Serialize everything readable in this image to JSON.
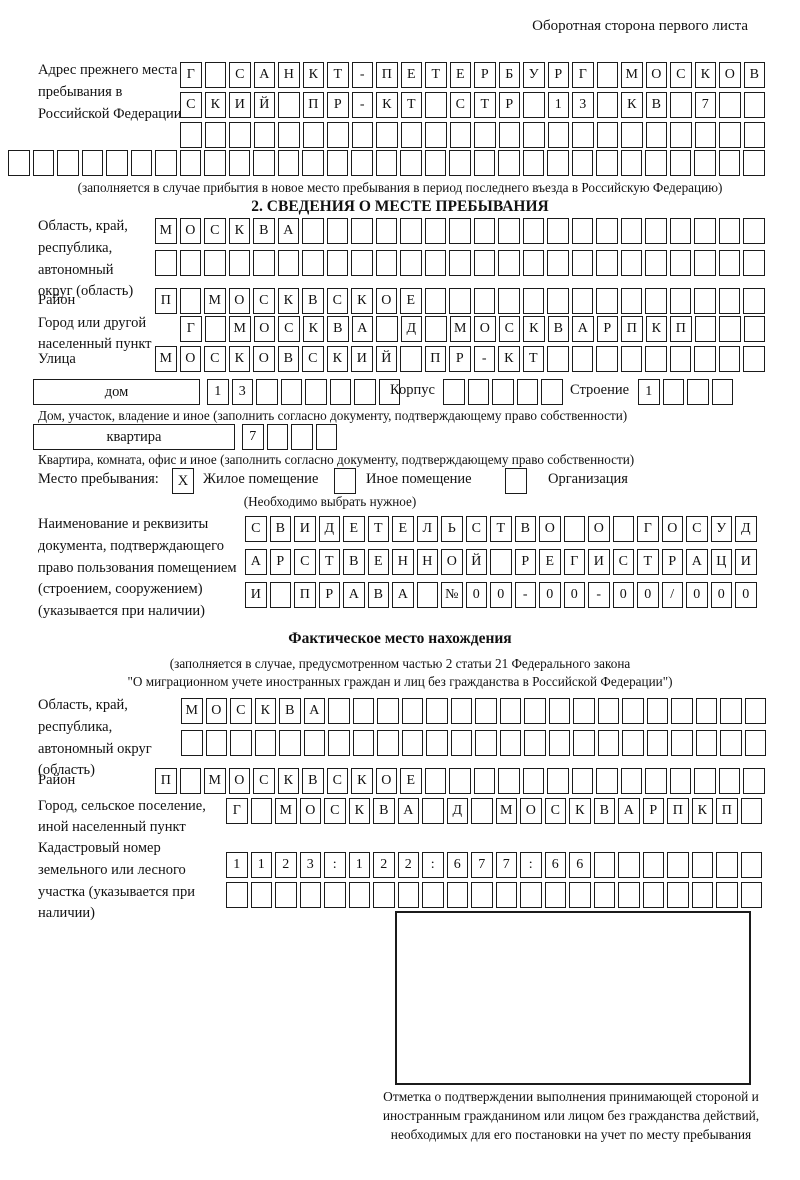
{
  "page": {
    "header_note": "Оборотная сторона первого листа"
  },
  "prev_address": {
    "label": "Адрес прежнего места пребывания в Российской Федерации",
    "rows": [
      {
        "len": 24,
        "text": "Г САНКТ-ПЕТЕРБУРГ МОСКОВ"
      },
      {
        "len": 24,
        "text": "СКИЙ ПР-КТ СТР 13 КВ 7"
      },
      {
        "len": 24,
        "text": ""
      },
      {
        "len": 31,
        "text": ""
      }
    ],
    "note": "(заполняется в случае прибытия в новое место пребывания в период последнего въезда в Российскую Федерацию)"
  },
  "section2": {
    "title": "2. СВЕДЕНИЯ О МЕСТЕ ПРЕБЫВАНИЯ",
    "region_label": "Область, край, республика, автономный округ (область)",
    "region_rows": [
      {
        "len": 25,
        "text": "МОСКВА"
      },
      {
        "len": 25,
        "text": ""
      }
    ],
    "district_label": "Район",
    "district_row": {
      "len": 25,
      "text": "П МОСКВСКОЕ"
    },
    "city_label": "Город или другой населенный пункт",
    "city_row": {
      "len": 24,
      "text": "Г МОСКВА Д МОСКВАРПКП"
    },
    "street_label": "Улица",
    "street_row": {
      "len": 25,
      "text": "МОСКОВСКИЙ ПР-КТ"
    },
    "house": {
      "label": "дом",
      "row": {
        "len": 8,
        "text": "13"
      }
    },
    "korpus": {
      "label": "Корпус",
      "row": {
        "len": 5,
        "text": ""
      }
    },
    "stroenie": {
      "label": "Строение",
      "row": {
        "len": 4,
        "text": "1"
      }
    },
    "house_note": "Дом, участок, владение и иное (заполнить согласно документу, подтверждающему право собственности)",
    "apartment": {
      "label": "квартира",
      "row": {
        "len": 4,
        "text": "7"
      }
    },
    "apartment_note": "Квартира, комната, офис и иное (заполнить согласно документу, подтверждающему право собственности)",
    "stay_type": {
      "label": "Место пребывания:",
      "options": [
        {
          "label": "Жилое помещение",
          "value": "X"
        },
        {
          "label": "Иное помещение",
          "value": ""
        },
        {
          "label": "Организация",
          "value": ""
        }
      ],
      "note": "(Необходимо выбрать нужное)"
    },
    "doc_label": "Наименование и реквизиты документа, подтверждающего право пользования помещением (строением, сооружением) (указывается при наличии)",
    "doc_rows": [
      {
        "len": 21,
        "text": "СВИДЕТЕЛЬСТВО О ГОСУД"
      },
      {
        "len": 21,
        "text": "АРСТВЕННОЙ РЕГИСТРАЦИ"
      },
      {
        "len": 21,
        "text": "И ПРАВА №00-00-00/000"
      }
    ]
  },
  "actual_location": {
    "title": "Фактическое место нахождения",
    "note_line1": "(заполняется в случае, предусмотренном частью 2 статьи 21 Федерального закона",
    "note_line2": "\"О миграционном учете иностранных граждан и лиц без гражданства в Российской Федерации\")",
    "region_label": "Область, край, республика, автономный округ (область)",
    "region_rows": [
      {
        "len": 24,
        "text": "МОСКВА"
      },
      {
        "len": 24,
        "text": ""
      }
    ],
    "district_label": "Район",
    "district_row": {
      "len": 25,
      "text": "П МОСКВСКОЕ"
    },
    "city_label": "Город, сельское поселение, иной населенный пункт",
    "city_row": {
      "len": 22,
      "text": "Г МОСКВА Д МОСКВАРПКП"
    },
    "cadastral_label": "Кадастровый номер земельного или лесного участка (указывается при наличии)",
    "cadastral_rows": [
      {
        "len": 22,
        "text": "1123:122:677:66"
      },
      {
        "len": 22,
        "text": ""
      }
    ],
    "stamp_note": "Отметка о подтверждении выполнения принимающей стороной и иностранным гражданином или лицом без гражданства действий, необходимых для его постановки на учет по месту пребывания"
  }
}
